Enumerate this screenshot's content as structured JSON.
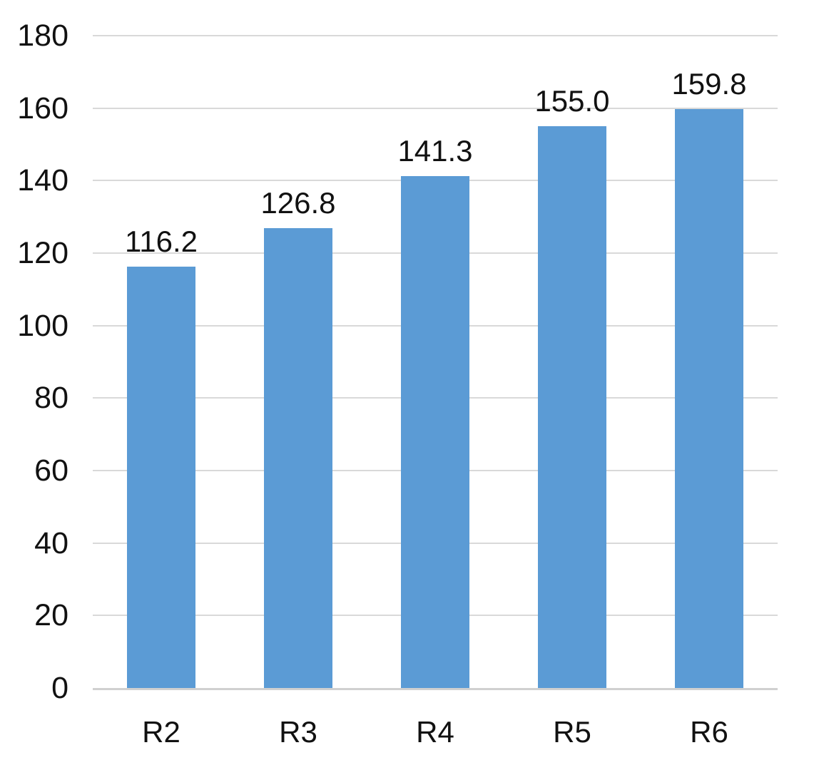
{
  "chart_data": {
    "type": "bar",
    "categories": [
      "R2",
      "R3",
      "R4",
      "R5",
      "R6"
    ],
    "values": [
      116.2,
      126.8,
      141.3,
      155.0,
      159.8
    ],
    "data_labels": [
      "116.2",
      "126.8",
      "141.3",
      "155.0",
      "159.8"
    ],
    "yticks": [
      0,
      20,
      40,
      60,
      80,
      100,
      120,
      140,
      160,
      180
    ],
    "ytick_labels": [
      "0",
      "20",
      "40",
      "60",
      "80",
      "100",
      "120",
      "140",
      "160",
      "180"
    ],
    "ylim": [
      0,
      180
    ],
    "title": "",
    "grid": true,
    "legend": false,
    "colors": {
      "bar": "#5B9BD5",
      "gridline": "#D9D9D9",
      "axis_line": "#D0D0D0",
      "text": "#111111"
    }
  }
}
